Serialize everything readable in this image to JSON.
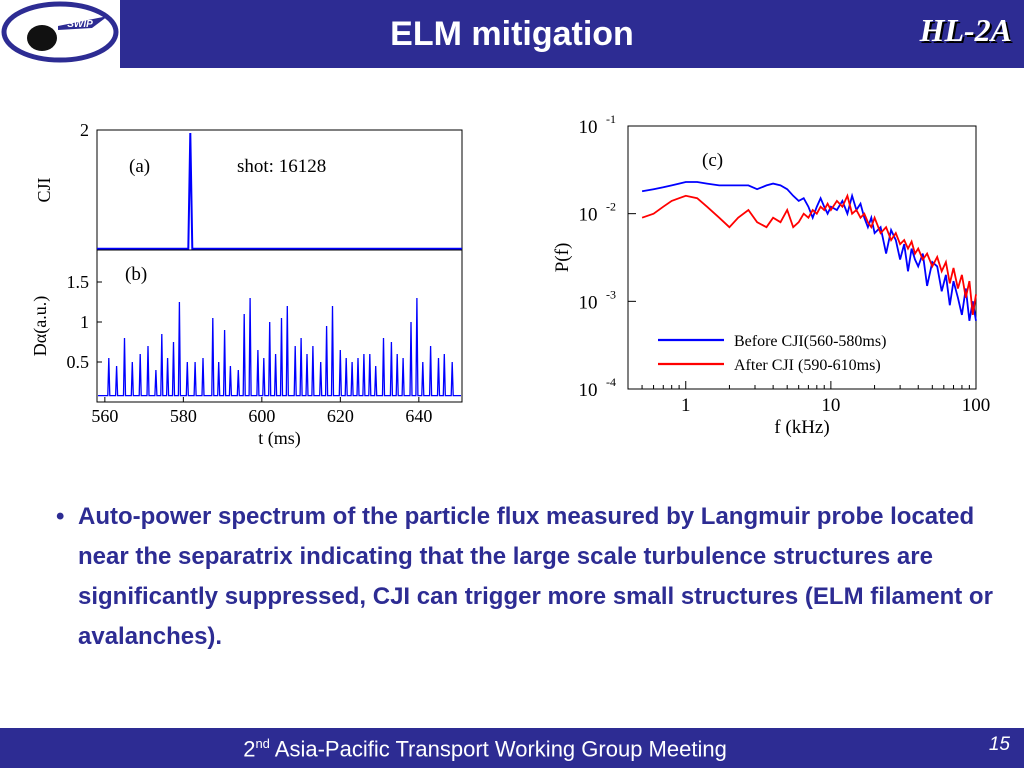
{
  "slide": {
    "title": "ELM mitigation",
    "brand": "HL-2A",
    "logo_text": "SWIP",
    "bullet_symbol": "•",
    "bullet": "Auto-power spectrum of the particle flux measured by Langmuir probe located near the separatrix indicating that the large scale turbulence structures are significantly suppressed, CJI can trigger more small structures (ELM filament or avalanches).",
    "footer": {
      "ordinal": "2",
      "ordinal_suffix": "nd",
      "text": " Asia-Pacific Transport Working Group Meeting"
    },
    "page_number": "15",
    "colors": {
      "header": "#2d2c93",
      "text_blue": "#2d2c93",
      "series_blue": "#0000ff",
      "series_red": "#ff0000"
    }
  },
  "chart_data": [
    {
      "type": "line",
      "panel_label": "(a)",
      "annotation": "shot: 16128",
      "ylabel": "CJI",
      "yticks": [
        "2"
      ],
      "xlim": [
        560,
        650
      ],
      "ylim": [
        0,
        2
      ],
      "series": [
        {
          "x": [
            560,
            582.5,
            583,
            583.5,
            650
          ],
          "y": [
            0.02,
            0.02,
            1.95,
            0.02,
            0.02
          ]
        }
      ]
    },
    {
      "type": "line",
      "panel_label": "(b)",
      "ylabel": "Dα(a.u.)",
      "xlabel": "t (ms)",
      "xticks": [
        "560",
        "580",
        "600",
        "620",
        "640"
      ],
      "yticks": [
        "0.5",
        "1",
        "1.5"
      ],
      "xlim": [
        558,
        651
      ],
      "ylim": [
        0,
        1.9
      ],
      "baseline": 0.08,
      "spikes": [
        [
          561,
          0.55
        ],
        [
          563,
          0.45
        ],
        [
          565,
          0.8
        ],
        [
          567,
          0.5
        ],
        [
          569,
          0.6
        ],
        [
          571,
          0.7
        ],
        [
          573,
          0.4
        ],
        [
          574.5,
          0.85
        ],
        [
          576,
          0.55
        ],
        [
          577.5,
          0.75
        ],
        [
          579,
          1.25
        ],
        [
          581,
          0.5
        ],
        [
          583,
          0.5
        ],
        [
          585,
          0.55
        ],
        [
          587.5,
          1.05
        ],
        [
          589,
          0.5
        ],
        [
          590.5,
          0.9
        ],
        [
          592,
          0.45
        ],
        [
          594,
          0.4
        ],
        [
          595.5,
          1.1
        ],
        [
          597,
          1.3
        ],
        [
          599,
          0.65
        ],
        [
          600.5,
          0.55
        ],
        [
          602,
          1.0
        ],
        [
          603.5,
          0.6
        ],
        [
          605,
          1.05
        ],
        [
          606.5,
          1.2
        ],
        [
          608.5,
          0.7
        ],
        [
          610,
          0.8
        ],
        [
          611.5,
          0.6
        ],
        [
          613,
          0.7
        ],
        [
          615,
          0.5
        ],
        [
          616.5,
          0.95
        ],
        [
          618,
          1.2
        ],
        [
          620,
          0.65
        ],
        [
          621.5,
          0.55
        ],
        [
          623,
          0.5
        ],
        [
          624.5,
          0.55
        ],
        [
          626,
          0.6
        ],
        [
          627.5,
          0.6
        ],
        [
          629,
          0.45
        ],
        [
          631,
          0.8
        ],
        [
          633,
          0.75
        ],
        [
          634.5,
          0.6
        ],
        [
          636,
          0.55
        ],
        [
          638,
          1.0
        ],
        [
          639.5,
          1.3
        ],
        [
          641,
          0.5
        ],
        [
          643,
          0.7
        ],
        [
          645,
          0.55
        ],
        [
          646.5,
          0.6
        ],
        [
          648.5,
          0.5
        ]
      ]
    },
    {
      "type": "line",
      "panel_label": "(c)",
      "xlabel": "f (kHz)",
      "ylabel": "P(f)",
      "xscale": "log",
      "yscale": "log",
      "xlim": [
        0.4,
        100
      ],
      "ylim": [
        0.0001,
        0.1
      ],
      "xticks": [
        "1",
        "10",
        "100"
      ],
      "yticks": [
        {
          "base": "10",
          "exp": "-1"
        },
        {
          "base": "10",
          "exp": "-2"
        },
        {
          "base": "10",
          "exp": "-3"
        },
        {
          "base": "10",
          "exp": "-4"
        }
      ],
      "legend_position": "bottom-right",
      "series": [
        {
          "name": "Before CJI(560-580ms)",
          "color": "#0000ff",
          "x": [
            0.5,
            0.6,
            0.7,
            0.8,
            0.9,
            1.0,
            1.2,
            1.4,
            1.7,
            2.0,
            2.3,
            2.7,
            3.1,
            3.6,
            4.0,
            4.5,
            5.0,
            5.5,
            6.0,
            6.5,
            7.0,
            7.5,
            8.0,
            8.5,
            9.0,
            9.5,
            10,
            11,
            12,
            13,
            14,
            15,
            16,
            17,
            18,
            19,
            20,
            22,
            24,
            26,
            28,
            30,
            32,
            34,
            36,
            38,
            40,
            43,
            46,
            50,
            54,
            58,
            62,
            66,
            70,
            75,
            80,
            85,
            90,
            95,
            100
          ],
          "y": [
            0.018,
            0.019,
            0.02,
            0.021,
            0.022,
            0.023,
            0.023,
            0.022,
            0.021,
            0.021,
            0.021,
            0.021,
            0.019,
            0.021,
            0.022,
            0.021,
            0.019,
            0.016,
            0.014,
            0.015,
            0.012,
            0.009,
            0.012,
            0.015,
            0.012,
            0.01,
            0.012,
            0.011,
            0.014,
            0.01,
            0.016,
            0.011,
            0.013,
            0.009,
            0.007,
            0.009,
            0.006,
            0.007,
            0.0035,
            0.0065,
            0.005,
            0.003,
            0.0045,
            0.0022,
            0.004,
            0.003,
            0.0025,
            0.0035,
            0.0015,
            0.0028,
            0.0025,
            0.0013,
            0.002,
            0.0009,
            0.0017,
            0.0011,
            0.0007,
            0.0014,
            0.0006,
            0.001,
            0.0006
          ]
        },
        {
          "name": "After CJI (590-610ms)",
          "color": "#ff0000",
          "x": [
            0.5,
            0.6,
            0.7,
            0.8,
            0.9,
            1.0,
            1.2,
            1.4,
            1.7,
            2.0,
            2.3,
            2.7,
            3.1,
            3.6,
            4.0,
            4.5,
            5.0,
            5.5,
            6.0,
            6.5,
            7.0,
            7.5,
            8.0,
            8.5,
            9.0,
            9.5,
            10,
            11,
            12,
            13,
            14,
            15,
            16,
            17,
            18,
            19,
            20,
            22,
            24,
            26,
            28,
            30,
            32,
            34,
            36,
            38,
            40,
            43,
            46,
            50,
            54,
            58,
            62,
            66,
            70,
            75,
            80,
            85,
            90,
            95,
            100
          ],
          "y": [
            0.009,
            0.01,
            0.012,
            0.014,
            0.015,
            0.016,
            0.015,
            0.012,
            0.009,
            0.007,
            0.009,
            0.011,
            0.008,
            0.007,
            0.009,
            0.008,
            0.011,
            0.007,
            0.008,
            0.01,
            0.009,
            0.011,
            0.01,
            0.012,
            0.011,
            0.013,
            0.011,
            0.014,
            0.012,
            0.016,
            0.01,
            0.011,
            0.009,
            0.01,
            0.008,
            0.007,
            0.009,
            0.006,
            0.007,
            0.005,
            0.006,
            0.0045,
            0.005,
            0.004,
            0.0048,
            0.0035,
            0.004,
            0.003,
            0.0035,
            0.0025,
            0.0032,
            0.0022,
            0.0028,
            0.0016,
            0.0024,
            0.0014,
            0.002,
            0.0011,
            0.0017,
            0.0007,
            0.0012
          ]
        }
      ]
    }
  ]
}
